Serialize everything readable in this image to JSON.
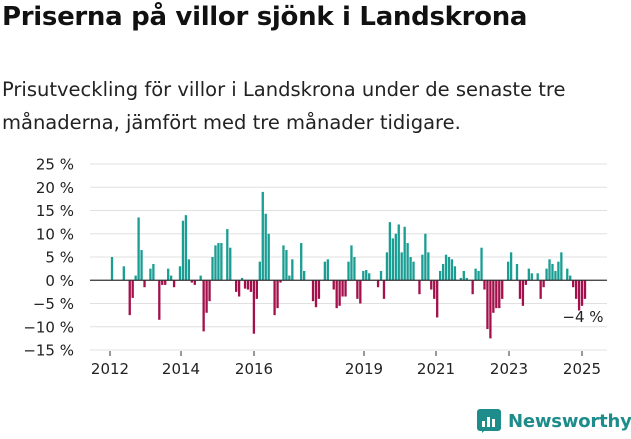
{
  "chart_data": {
    "type": "bar",
    "title": "Priserna på villor sjönk i Landskrona",
    "subtitle": "Prisutveckling för villor i Landskrona under de senaste tre månaderna, jämfört med tre månader tidigare.",
    "y_unit": " %",
    "ylim": [
      -15,
      25
    ],
    "y_ticks": [
      25,
      20,
      15,
      10,
      5,
      0,
      -5,
      -10,
      -15
    ],
    "x_ticks": [
      "2012",
      "2014",
      "2016",
      "2019",
      "2021",
      "2023",
      "2025"
    ],
    "annotation": "−4 %",
    "colors": {
      "positive": "#1a9e93",
      "negative": "#a3104b",
      "grid": "#e0e0e0",
      "axis": "#333333"
    },
    "values": [
      5,
      0,
      0,
      0,
      3,
      0,
      -7.5,
      -3.8,
      1,
      13.5,
      6.5,
      -1.5,
      0,
      2.5,
      3.5,
      0,
      -8.5,
      -1,
      -1,
      2.5,
      1,
      -1.5,
      0,
      3,
      12.8,
      14,
      4.5,
      -0.5,
      -1,
      0,
      1,
      -11,
      -7,
      -4.5,
      5,
      7.5,
      8,
      8,
      0,
      11,
      7,
      0,
      -2.5,
      -3.5,
      0.5,
      -1.8,
      -2,
      -2.5,
      -11.5,
      -4,
      4,
      19,
      14.3,
      10,
      0,
      -7.5,
      -6,
      -0.5,
      7.5,
      6.5,
      1,
      4.5,
      0,
      0,
      8,
      2,
      0,
      0,
      -4.5,
      -5.8,
      -4,
      0,
      4,
      4.5,
      0,
      -2,
      -6,
      -5.5,
      -3.5,
      -3.5,
      4,
      7.5,
      5,
      -4,
      -5,
      2,
      2.2,
      1.5,
      0,
      0,
      -1.5,
      2,
      -4,
      6,
      12.5,
      9,
      10,
      12,
      6,
      11.5,
      8,
      5,
      4,
      0,
      -3,
      5.5,
      10,
      6,
      -2,
      -4,
      -8,
      2,
      3.5,
      5.5,
      5,
      4.5,
      3,
      0,
      0.5,
      2,
      0.5,
      0,
      -3,
      2.5,
      2,
      7,
      -2,
      -10.5,
      -12.5,
      -7,
      -6,
      -6,
      -4,
      0,
      4,
      6,
      0,
      3.5,
      -4,
      -5.5,
      -1,
      2.5,
      1.5,
      0,
      1.5,
      -4,
      -1.5,
      2.5,
      4.5,
      3.5,
      2,
      4,
      6,
      0,
      2.5,
      1,
      -1.5,
      -4,
      -6.5,
      -5.5,
      -4
    ]
  },
  "brand": {
    "name": "Newsworthy"
  }
}
